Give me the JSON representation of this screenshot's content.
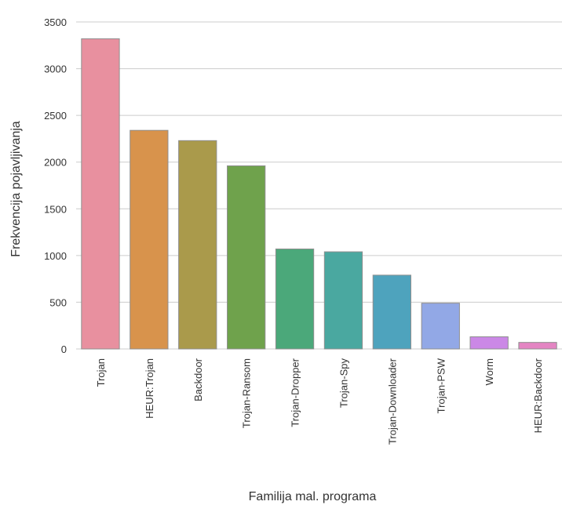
{
  "chart_data": {
    "type": "bar",
    "categories": [
      "Trojan",
      "HEUR:Trojan",
      "Backdoor",
      "Trojan-Ransom",
      "Trojan-Dropper",
      "Trojan-Spy",
      "Trojan-Downloader",
      "Trojan-PSW",
      "Worm",
      "HEUR:Backdoor"
    ],
    "values": [
      3320,
      2340,
      2230,
      1960,
      1070,
      1040,
      790,
      490,
      130,
      70
    ],
    "colors": [
      "#e8909f",
      "#d8934c",
      "#aa9a4b",
      "#6fa24c",
      "#4ba87a",
      "#4aa8a0",
      "#4ea3bd",
      "#92a8e6",
      "#cb88e6",
      "#e485c3"
    ],
    "xlabel": "Familija mal. programa",
    "ylabel": "Frekvencija pojavljivanja",
    "ylim": [
      0,
      3500
    ],
    "yticks": [
      0,
      500,
      1000,
      1500,
      2000,
      2500,
      3000,
      3500
    ],
    "grid": true,
    "legend": "none"
  }
}
